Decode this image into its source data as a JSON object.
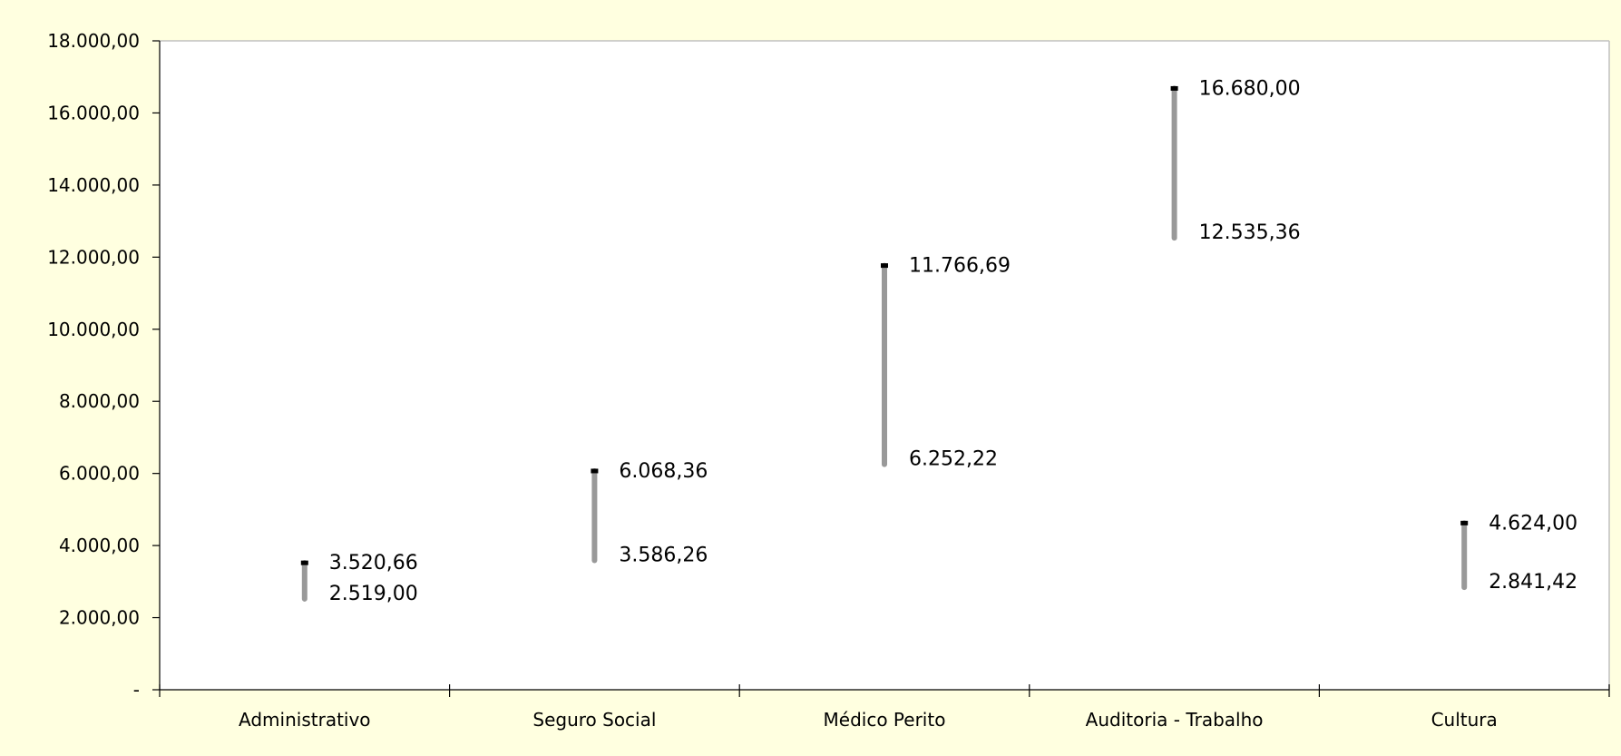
{
  "chart_data": {
    "type": "hi-lo",
    "categories": [
      "Administrativo",
      "Seguro Social",
      "Médico Perito",
      "Auditoria - Trabalho",
      "Cultura"
    ],
    "series": [
      {
        "values": [
          3520.66,
          6068.36,
          11766.69,
          16680.0,
          4624.0
        ],
        "labels": [
          "3.520,66",
          "6.068,36",
          "11.766,69",
          "16.680,00",
          "4.624,00"
        ]
      },
      {
        "values": [
          2519.0,
          3586.26,
          6252.22,
          12535.36,
          2841.42
        ],
        "labels": [
          "2.519,00",
          "3.586,26",
          "6.252,22",
          "12.535,36",
          "2.841,42"
        ]
      }
    ],
    "ylim": [
      0,
      18000
    ],
    "yticks": [
      0,
      2000,
      4000,
      6000,
      8000,
      10000,
      12000,
      14000,
      16000,
      18000
    ],
    "ytick_labels": [
      "-",
      "2.000,00",
      "4.000,00",
      "6.000,00",
      "8.000,00",
      "10.000,00",
      "12.000,00",
      "14.000,00",
      "16.000,00",
      "18.000,00"
    ],
    "grid": false,
    "legend": "none",
    "colors": {
      "background": "#FFFFE0",
      "plot_area": "#FFFFFF",
      "range_bar": "#999999",
      "top_marker": "#000000",
      "axis": "#000000",
      "frame": "#C0C0C0"
    }
  }
}
